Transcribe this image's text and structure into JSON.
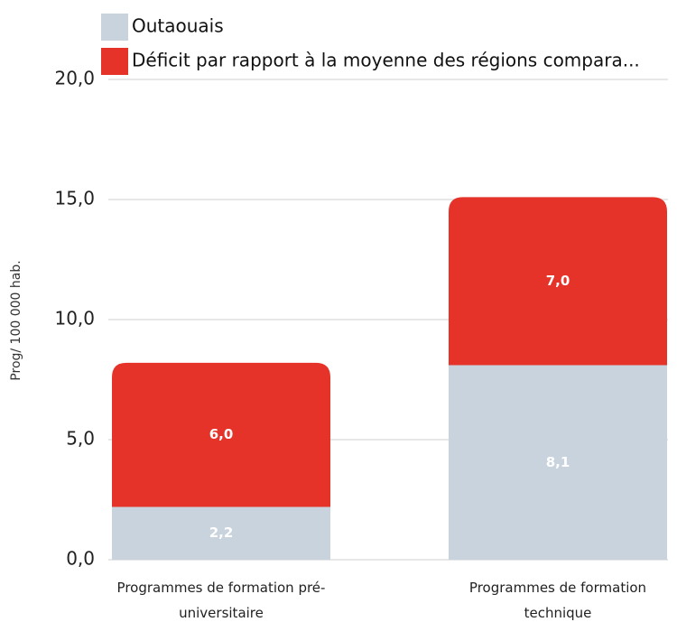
{
  "chart_data": {
    "type": "stacked_bar",
    "categories": [
      "Programmes de formation pré-universitaire",
      "Programmes de formation technique"
    ],
    "series": [
      {
        "name": "Outaouais",
        "color": "#c8d3de",
        "values": [
          2.2,
          8.1
        ],
        "value_labels": [
          "2,2",
          "8,1"
        ]
      },
      {
        "name": "Déficit par rapport à la moyenne des régions compara...",
        "color": "#e5332a",
        "values": [
          6.0,
          7.0
        ],
        "value_labels": [
          "6,0",
          "7,0"
        ]
      }
    ],
    "y_label": "Prog/ 100 000 hab.",
    "ylim": [
      0,
      20
    ],
    "yticks": [
      {
        "value": 0,
        "label": "0,0"
      },
      {
        "value": 5,
        "label": "5,0"
      },
      {
        "value": 10,
        "label": "10,0"
      },
      {
        "value": 15,
        "label": "15,0"
      },
      {
        "value": 20,
        "label": "20,0"
      }
    ],
    "grid": true,
    "legend": "top"
  }
}
